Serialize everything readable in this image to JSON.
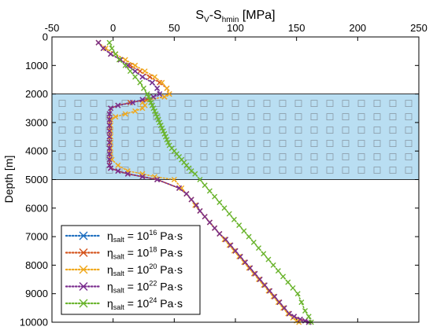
{
  "chart_data": {
    "type": "line",
    "title": "",
    "xlabel": {
      "main": "S",
      "sub1": "V",
      "mid": "-S",
      "sub2": "hmin",
      "tail": " [MPa]"
    },
    "ylabel": "Depth [m]",
    "xlim": [
      -50,
      250
    ],
    "ylim": [
      0,
      10000
    ],
    "y_inverted": true,
    "x_axis_position": "top",
    "xticks": [
      "-50",
      "0",
      "50",
      "100",
      "150",
      "200",
      "250"
    ],
    "yticks": [
      "0",
      "1000",
      "2000",
      "3000",
      "4000",
      "5000",
      "6000",
      "7000",
      "8000",
      "9000",
      "10000"
    ],
    "grid": false,
    "salt_layer": {
      "top": 2000,
      "bottom": 5000,
      "color": "#b9def2",
      "marker_color": "#8a9aa6"
    },
    "legend": {
      "position": "bottom-left"
    },
    "series": [
      {
        "name": "η_salt = 10^16 Pa·s",
        "eta_label": "η",
        "eta_sub": "salt",
        "mid": " = 10",
        "exp": "16",
        "unit": " Pa·s",
        "color": "#1f6fbf",
        "x": [
          -12,
          -8,
          -2,
          6,
          12,
          18,
          24,
          32,
          36,
          38,
          33,
          24,
          16,
          4,
          -2,
          -3,
          -3,
          -3,
          -3,
          -3,
          -3,
          -3,
          -3,
          -3,
          -3,
          -2,
          4,
          12,
          24,
          36,
          54,
          60,
          64,
          68,
          71,
          75,
          79,
          83,
          87,
          92,
          96,
          100,
          104,
          108,
          112,
          116,
          120,
          124,
          128,
          132,
          136,
          140,
          144,
          148,
          153,
          157,
          160
        ],
        "y": [
          200,
          400,
          600,
          800,
          1000,
          1200,
          1400,
          1600,
          1800,
          2000,
          2100,
          2200,
          2300,
          2400,
          2500,
          2700,
          2900,
          3100,
          3300,
          3500,
          3700,
          3900,
          4100,
          4300,
          4500,
          4600,
          4700,
          4800,
          4900,
          5000,
          5300,
          5500,
          5700,
          5900,
          6100,
          6300,
          6500,
          6700,
          6900,
          7100,
          7300,
          7500,
          7700,
          7900,
          8100,
          8300,
          8500,
          8700,
          8900,
          9100,
          9300,
          9500,
          9700,
          9800,
          9900,
          9950,
          10000
        ]
      },
      {
        "name": "η_salt = 10^18 Pa·s",
        "eta_label": "η",
        "eta_sub": "salt",
        "mid": " = 10",
        "exp": "18",
        "unit": " Pa·s",
        "color": "#d4541d",
        "x": [
          -12,
          -8,
          -2,
          6,
          14,
          22,
          30,
          38,
          44,
          46,
          42,
          28,
          14,
          4,
          -2,
          -3,
          -3,
          -3,
          -3,
          -3,
          -3,
          -3,
          -3,
          -3,
          -3,
          -2,
          4,
          12,
          24,
          36,
          54,
          60,
          64,
          68,
          71,
          75,
          79,
          83,
          87,
          92,
          96,
          100,
          104,
          108,
          112,
          116,
          120,
          124,
          128,
          132,
          136,
          140,
          144,
          148,
          153,
          157,
          160
        ],
        "y": [
          200,
          400,
          600,
          800,
          1000,
          1200,
          1400,
          1600,
          1800,
          2000,
          2100,
          2200,
          2300,
          2400,
          2500,
          2700,
          2900,
          3100,
          3300,
          3500,
          3700,
          3900,
          4100,
          4300,
          4500,
          4600,
          4700,
          4800,
          4900,
          5000,
          5300,
          5500,
          5700,
          5900,
          6100,
          6300,
          6500,
          6700,
          6900,
          7100,
          7300,
          7500,
          7700,
          7900,
          8100,
          8300,
          8500,
          8700,
          8900,
          9100,
          9300,
          9500,
          9700,
          9800,
          9900,
          9950,
          10000
        ]
      },
      {
        "name": "η_salt = 10^20 Pa·s",
        "eta_label": "η",
        "eta_sub": "salt",
        "mid": " = 10",
        "exp": "20",
        "unit": " Pa·s",
        "color": "#f0a81c",
        "x": [
          -12,
          -6,
          2,
          10,
          18,
          26,
          34,
          40,
          44,
          46,
          42,
          30,
          24,
          26,
          24,
          18,
          10,
          2,
          -2,
          -2,
          -2,
          -2,
          -2,
          -2,
          -2,
          -1,
          4,
          12,
          24,
          34,
          50,
          56,
          60,
          64,
          67,
          71,
          75,
          79,
          83,
          87,
          91,
          95,
          99,
          103,
          107,
          111,
          115,
          119,
          123,
          127,
          131,
          135,
          139,
          143,
          147,
          150,
          152
        ],
        "y": [
          200,
          400,
          600,
          800,
          1000,
          1200,
          1400,
          1600,
          1800,
          2000,
          2100,
          2200,
          2300,
          2400,
          2500,
          2600,
          2700,
          2800,
          2900,
          3100,
          3300,
          3500,
          3700,
          3900,
          4100,
          4300,
          4500,
          4700,
          4800,
          4900,
          5000,
          5300,
          5500,
          5700,
          5900,
          6100,
          6300,
          6500,
          6700,
          6900,
          7100,
          7300,
          7500,
          7700,
          7900,
          8100,
          8300,
          8500,
          8700,
          8900,
          9100,
          9300,
          9500,
          9700,
          9850,
          9950,
          10000
        ]
      },
      {
        "name": "η_salt = 10^22 Pa·s",
        "eta_label": "η",
        "eta_sub": "salt",
        "mid": " = 10",
        "exp": "22",
        "unit": " Pa·s",
        "color": "#7b2d8e",
        "x": [
          -12,
          -8,
          -2,
          6,
          12,
          18,
          24,
          32,
          36,
          38,
          33,
          24,
          16,
          4,
          -2,
          -3,
          -3,
          -3,
          -3,
          -3,
          -3,
          -3,
          -3,
          -3,
          -3,
          -2,
          4,
          12,
          24,
          36,
          54,
          60,
          64,
          68,
          71,
          75,
          79,
          83,
          87,
          92,
          96,
          100,
          104,
          108,
          112,
          116,
          120,
          124,
          128,
          132,
          136,
          140,
          144,
          148,
          153,
          157,
          160
        ],
        "y": [
          200,
          400,
          600,
          800,
          1000,
          1200,
          1400,
          1600,
          1800,
          2000,
          2100,
          2200,
          2300,
          2400,
          2500,
          2700,
          2900,
          3100,
          3300,
          3500,
          3700,
          3900,
          4100,
          4300,
          4500,
          4600,
          4700,
          4800,
          4900,
          5000,
          5300,
          5500,
          5700,
          5900,
          6100,
          6300,
          6500,
          6700,
          6900,
          7100,
          7300,
          7500,
          7700,
          7900,
          8100,
          8300,
          8500,
          8700,
          8900,
          9100,
          9300,
          9500,
          9700,
          9800,
          9900,
          9950,
          10000
        ]
      },
      {
        "name": "η_salt = 10^24 Pa·s",
        "eta_label": "η",
        "eta_sub": "salt",
        "mid": " = 10",
        "exp": "24",
        "unit": " Pa·s",
        "color": "#6ab42d",
        "x": [
          -3,
          -1,
          2,
          5,
          10,
          14,
          18,
          22,
          25,
          28,
          29,
          30,
          31,
          32,
          33,
          34,
          35,
          36,
          37,
          38,
          39,
          40,
          41,
          42,
          43,
          44,
          45,
          46,
          48,
          50,
          52,
          54,
          56,
          58,
          60,
          62,
          64,
          67,
          71,
          75,
          79,
          83,
          87,
          91,
          95,
          99,
          103,
          107,
          111,
          115,
          119,
          123,
          127,
          131,
          135,
          139,
          143,
          147,
          151,
          154,
          157,
          160,
          162
        ],
        "y": [
          200,
          400,
          600,
          800,
          1000,
          1200,
          1400,
          1600,
          1800,
          2000,
          2100,
          2200,
          2300,
          2400,
          2500,
          2600,
          2700,
          2800,
          2900,
          3000,
          3100,
          3200,
          3300,
          3400,
          3500,
          3600,
          3700,
          3800,
          3900,
          4000,
          4100,
          4200,
          4300,
          4400,
          4500,
          4600,
          4700,
          4800,
          5000,
          5200,
          5400,
          5600,
          5800,
          6000,
          6200,
          6400,
          6600,
          6800,
          7000,
          7200,
          7400,
          7600,
          7800,
          8000,
          8200,
          8400,
          8600,
          8800,
          9000,
          9300,
          9600,
          9800,
          10000
        ]
      }
    ]
  }
}
